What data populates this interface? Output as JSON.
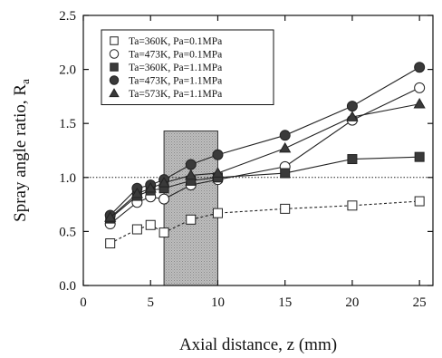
{
  "chart_data": {
    "type": "line",
    "title": "",
    "xlabel": "Axial distance, z (mm)",
    "ylabel_main": "Spray angle ratio, R",
    "ylabel_sub": "a",
    "xlim": [
      0,
      26
    ],
    "ylim": [
      0,
      2.5
    ],
    "xticks": [
      0,
      5,
      10,
      15,
      20,
      25
    ],
    "yticks": [
      0.0,
      0.5,
      1.0,
      1.5,
      2.0,
      2.5
    ],
    "xtick_labels": [
      "0",
      "5",
      "10",
      "15",
      "20",
      "25"
    ],
    "ytick_labels": [
      "0.0",
      "0.5",
      "1.0",
      "1.5",
      "2.0",
      "2.5"
    ],
    "reference_line": {
      "y": 1.0,
      "style": "dotted"
    },
    "shaded_region": {
      "x_range": [
        6,
        10
      ],
      "y_range": [
        0,
        1.43
      ]
    },
    "legend_position": "top-left",
    "series": [
      {
        "name": "Ta=360K, Pa=0.1MPa",
        "marker": "square-open",
        "line": "dashed",
        "x": [
          2,
          4,
          5,
          6,
          8,
          10,
          15,
          20,
          25
        ],
        "y": [
          0.39,
          0.52,
          0.56,
          0.49,
          0.61,
          0.67,
          0.71,
          0.74,
          0.78
        ]
      },
      {
        "name": "Ta=473K, Pa=0.1MPa",
        "marker": "circle-open",
        "line": "solid",
        "x": [
          2,
          4,
          5,
          6,
          8,
          10,
          15,
          20,
          25
        ],
        "y": [
          0.57,
          0.77,
          0.82,
          0.8,
          0.93,
          0.98,
          1.1,
          1.53,
          1.83
        ]
      },
      {
        "name": "Ta=360K, Pa=1.1MPa",
        "marker": "square-filled",
        "line": "solid",
        "x": [
          2,
          4,
          5,
          6,
          8,
          10,
          15,
          20,
          25
        ],
        "y": [
          0.62,
          0.83,
          0.88,
          0.9,
          0.97,
          1.0,
          1.04,
          1.17,
          1.19
        ]
      },
      {
        "name": "Ta=473K, Pa=1.1MPa",
        "marker": "circle-filled",
        "line": "solid",
        "x": [
          2,
          4,
          5,
          6,
          8,
          10,
          15,
          20,
          25
        ],
        "y": [
          0.65,
          0.9,
          0.93,
          0.98,
          1.12,
          1.21,
          1.39,
          1.66,
          2.02
        ]
      },
      {
        "name": "Ta=573K, Pa=1.1MPa",
        "marker": "triangle-filled",
        "line": "solid",
        "x": [
          2,
          4,
          5,
          6,
          8,
          10,
          15,
          20,
          25
        ],
        "y": [
          0.63,
          0.85,
          0.9,
          0.95,
          1.02,
          1.04,
          1.27,
          1.56,
          1.68
        ]
      }
    ]
  }
}
